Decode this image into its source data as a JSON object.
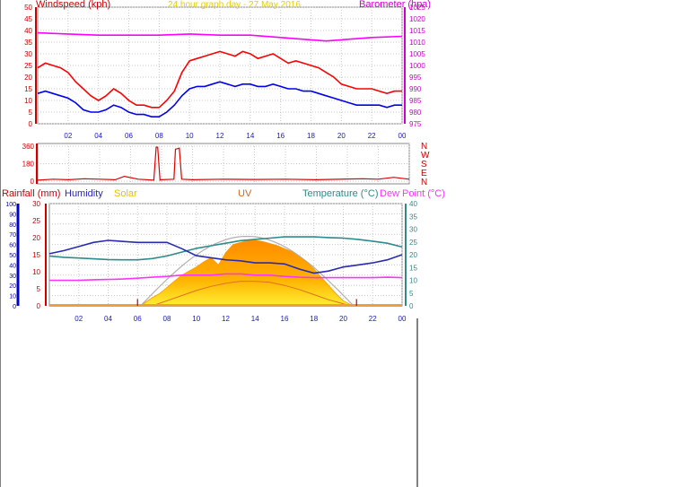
{
  "header": {
    "windspeed_label": "Windspeed (kph)",
    "title": "24 hour graph day - 27 May 2016",
    "barometer_label": "Barometer (hpa)"
  },
  "colors": {
    "gust": "#ff0000",
    "average": "#0000ee",
    "barometer": "#ff00ff",
    "direction": "#e00000",
    "rainfall": "#cc0000",
    "humidity": "#2a2ab0",
    "solar": "#ffcc00",
    "uv": "#cc5500",
    "temperature": "#2e8b8b",
    "dewpoint": "#ff33ff",
    "grid": "#c8c8c8",
    "axis_label": "#1a1aaa"
  },
  "chart_data": [
    {
      "type": "line",
      "name": "wind-barometer",
      "x_ticks": [
        "02",
        "04",
        "06",
        "08",
        "10",
        "12",
        "14",
        "16",
        "18",
        "20",
        "22",
        "00"
      ],
      "xlim": [
        0,
        24
      ],
      "left_axis": {
        "label": "Windspeed (kph)",
        "ticks": [
          0,
          5,
          10,
          15,
          20,
          25,
          30,
          35,
          40,
          45,
          50
        ],
        "ylim": [
          0,
          50
        ]
      },
      "right_axis": {
        "label": "Barometer (hpa)",
        "ticks": [
          975,
          980,
          985,
          990,
          995,
          1000,
          1005,
          1010,
          1015,
          1020,
          1025
        ],
        "ylim": [
          975,
          1025
        ]
      },
      "series": [
        {
          "key": "gust",
          "axis": "left",
          "x": [
            0,
            0.5,
            1,
            1.5,
            2,
            2.5,
            3,
            3.5,
            4,
            4.5,
            5,
            5.5,
            6,
            6.5,
            7,
            7.5,
            8,
            8.5,
            9,
            9.5,
            10,
            10.5,
            11,
            11.5,
            12,
            12.5,
            13,
            13.5,
            14,
            14.5,
            15,
            15.5,
            16,
            16.5,
            17,
            17.5,
            18,
            18.5,
            19,
            19.5,
            20,
            20.5,
            21,
            21.5,
            22,
            22.5,
            23,
            23.5,
            24
          ],
          "values": [
            24,
            26,
            25,
            24,
            22,
            18,
            15,
            12,
            10,
            12,
            15,
            13,
            10,
            8,
            8,
            7,
            7,
            10,
            14,
            22,
            27,
            28,
            29,
            30,
            31,
            30,
            29,
            31,
            30,
            28,
            29,
            30,
            28,
            26,
            27,
            26,
            25,
            24,
            22,
            20,
            17,
            16,
            15,
            15,
            15,
            14,
            13,
            14,
            14
          ]
        },
        {
          "key": "average",
          "axis": "left",
          "x": [
            0,
            0.5,
            1,
            1.5,
            2,
            2.5,
            3,
            3.5,
            4,
            4.5,
            5,
            5.5,
            6,
            6.5,
            7,
            7.5,
            8,
            8.5,
            9,
            9.5,
            10,
            10.5,
            11,
            11.5,
            12,
            12.5,
            13,
            13.5,
            14,
            14.5,
            15,
            15.5,
            16,
            16.5,
            17,
            17.5,
            18,
            18.5,
            19,
            19.5,
            20,
            20.5,
            21,
            21.5,
            22,
            22.5,
            23,
            23.5,
            24
          ],
          "values": [
            13,
            14,
            13,
            12,
            11,
            9,
            6,
            5,
            5,
            6,
            8,
            7,
            5,
            4,
            4,
            3,
            3,
            5,
            8,
            12,
            15,
            16,
            16,
            17,
            18,
            17,
            16,
            17,
            17,
            16,
            16,
            17,
            16,
            15,
            15,
            14,
            14,
            13,
            12,
            11,
            10,
            9,
            8,
            8,
            8,
            8,
            7,
            8,
            8
          ]
        },
        {
          "key": "barometer",
          "axis": "right",
          "x": [
            0,
            2,
            4,
            6,
            8,
            10,
            12,
            14,
            16,
            18,
            19,
            20,
            22,
            24
          ],
          "values": [
            1014,
            1013.5,
            1013,
            1013,
            1013,
            1013.5,
            1013,
            1013,
            1012,
            1011,
            1010.5,
            1011,
            1012,
            1012.5
          ]
        }
      ]
    },
    {
      "type": "line",
      "name": "wind-direction",
      "y_ticks": [
        0,
        180,
        360
      ],
      "ylim": [
        0,
        360
      ],
      "compass": [
        "N",
        "W",
        "S",
        "E",
        "N"
      ],
      "series": [
        {
          "key": "direction",
          "x": [
            0,
            1,
            2,
            3,
            4,
            5,
            5.6,
            6.5,
            7.5,
            7.65,
            7.75,
            7.9,
            8.0,
            8.8,
            8.9,
            9.05,
            9.15,
            9.3,
            10,
            12,
            14,
            16,
            18,
            20,
            21,
            22,
            23,
            23.5,
            24
          ],
          "values": [
            10,
            20,
            15,
            25,
            20,
            15,
            50,
            20,
            10,
            350,
            350,
            10,
            15,
            20,
            330,
            335,
            340,
            20,
            15,
            20,
            18,
            20,
            15,
            22,
            25,
            20,
            40,
            30,
            20
          ]
        }
      ]
    },
    {
      "type": "area",
      "name": "solar-temperature",
      "legend": [
        {
          "key": "rainfall",
          "label": "Rainfall (mm)"
        },
        {
          "key": "humidity",
          "label": "Humidity"
        },
        {
          "key": "solar",
          "label": "Solar"
        },
        {
          "key": "uv",
          "label": "UV"
        },
        {
          "key": "temperature",
          "label": "Temperature (°C)"
        },
        {
          "key": "dewpoint",
          "label": "Dew Point (°C)"
        }
      ],
      "x_ticks": [
        "02",
        "04",
        "06",
        "08",
        "10",
        "12",
        "14",
        "16",
        "18",
        "20",
        "22",
        "00"
      ],
      "xlim": [
        0,
        24
      ],
      "rain_axis": {
        "ticks": [
          0,
          5,
          10,
          15,
          20,
          25,
          30
        ],
        "ylim": [
          0,
          30
        ]
      },
      "humidity_axis": {
        "ticks": [
          0,
          10,
          20,
          30,
          40,
          50,
          60,
          70,
          80,
          90,
          100
        ],
        "ylim": [
          0,
          100
        ]
      },
      "temp_axis": {
        "ticks": [
          0,
          5,
          10,
          15,
          20,
          25,
          30,
          35,
          40
        ],
        "ylim": [
          0,
          40
        ]
      },
      "series": [
        {
          "key": "humidity",
          "x": [
            0,
            1,
            2,
            3,
            4,
            5,
            6,
            7,
            8,
            9,
            10,
            11,
            12,
            13,
            14,
            15,
            16,
            17,
            18,
            19,
            20,
            21,
            22,
            23,
            24
          ],
          "values": [
            51,
            54,
            58,
            62,
            64,
            63,
            62,
            62,
            62,
            56,
            49,
            47,
            45,
            44,
            42,
            42,
            41,
            36,
            32,
            34,
            38,
            40,
            42,
            45,
            50
          ]
        },
        {
          "key": "temperature",
          "x": [
            0,
            1,
            2,
            3,
            4,
            5,
            6,
            7,
            8,
            9,
            10,
            11,
            12,
            13,
            14,
            15,
            16,
            17,
            18,
            19,
            20,
            21,
            22,
            23,
            24
          ],
          "values": [
            19.5,
            19,
            18.7,
            18.4,
            18.1,
            18,
            18,
            18.5,
            19.5,
            21,
            22.5,
            23.5,
            24.5,
            25.5,
            26,
            26.5,
            27,
            27,
            27,
            26.7,
            26.5,
            26,
            25.3,
            24.5,
            23
          ]
        },
        {
          "key": "dewpoint",
          "x": [
            0,
            1,
            2,
            3,
            4,
            5,
            6,
            7,
            8,
            9,
            10,
            11,
            12,
            13,
            14,
            15,
            16,
            17,
            18,
            19,
            20,
            21,
            22,
            23,
            24
          ],
          "values": [
            10,
            10,
            10,
            10.2,
            10.3,
            10.5,
            10.8,
            11.2,
            11.5,
            12,
            12,
            12,
            12.5,
            12.5,
            12,
            12,
            11.5,
            11.2,
            11,
            11,
            11,
            11,
            11,
            11.2,
            11
          ]
        },
        {
          "key": "solar",
          "scale": "humidity",
          "x": [
            6.2,
            7,
            7.5,
            8,
            8.5,
            9,
            9.5,
            10,
            10.5,
            11,
            11.5,
            12,
            12.5,
            13,
            13.5,
            14,
            14.5,
            15,
            15.5,
            16,
            16.5,
            17,
            17.5,
            18,
            18.5,
            19,
            19.5,
            20,
            20.5,
            20.7
          ],
          "values": [
            0,
            8,
            12,
            18,
            24,
            30,
            34,
            38,
            43,
            47,
            40,
            52,
            60,
            62,
            64,
            64,
            63,
            61,
            59,
            56,
            53,
            48,
            43,
            36,
            28,
            20,
            12,
            5,
            1,
            0
          ]
        },
        {
          "key": "uv",
          "scale": "humidity",
          "x": [
            7,
            8,
            9,
            10,
            11,
            12,
            13,
            14,
            15,
            16,
            17,
            18,
            19,
            20,
            20.5
          ],
          "values": [
            0,
            5,
            10,
            15,
            19,
            22,
            24,
            24,
            23,
            20,
            16,
            11,
            6,
            2,
            0
          ]
        },
        {
          "key": "rainfall",
          "x": [
            6.0,
            20.9
          ],
          "values": [
            2,
            2
          ]
        }
      ]
    }
  ]
}
